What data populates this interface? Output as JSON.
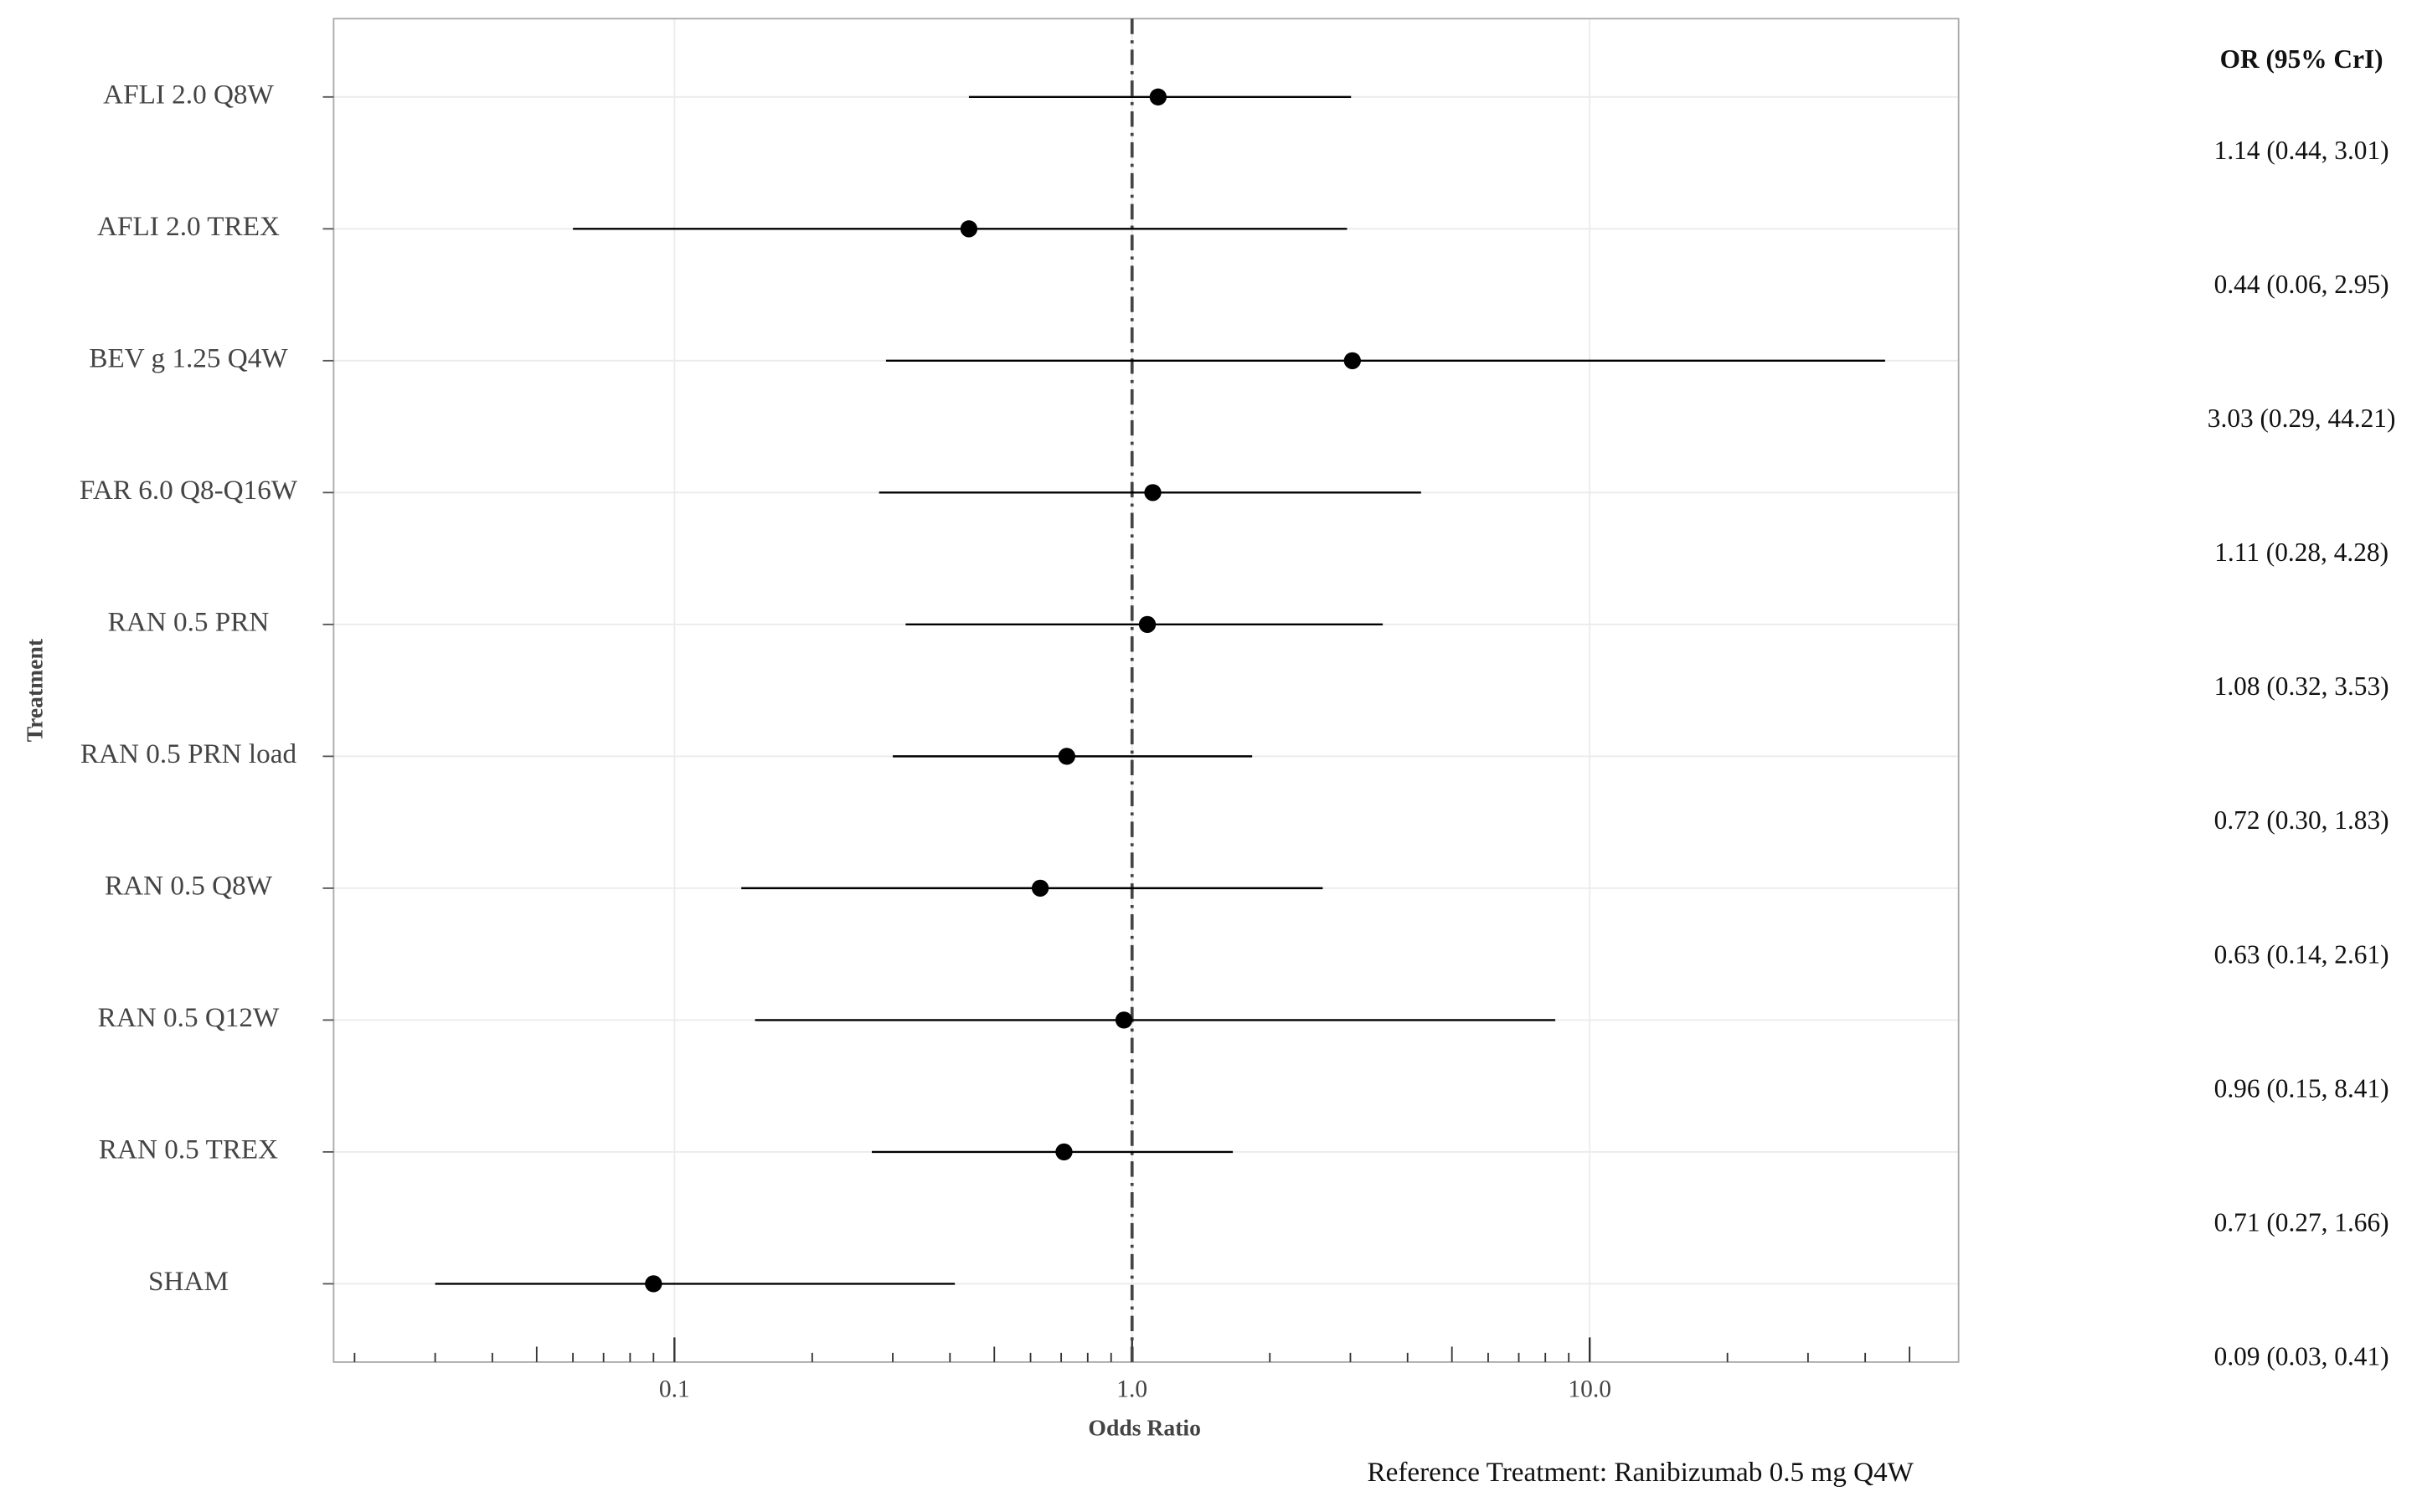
{
  "chart_data": {
    "type": "forest",
    "x_label": "Odds Ratio",
    "y_label": "Treatment",
    "table_header": "OR (95% CrI)",
    "footnote": "Reference Treatment: Ranibizumab 0.5 mg Q4W",
    "categories": [
      "AFLI 2.0 Q8W",
      "AFLI 2.0 TREX",
      "BEV g 1.25 Q4W",
      "FAR 6.0 Q8-Q16W",
      "RAN 0.5 PRN",
      "RAN 0.5 PRN load",
      "RAN 0.5 Q8W",
      "RAN 0.5 Q12W",
      "RAN 0.5 TREX",
      "SHAM"
    ],
    "values": [
      1.14,
      0.44,
      3.03,
      1.11,
      1.08,
      0.72,
      0.63,
      0.96,
      0.71,
      0.09
    ],
    "lower": [
      0.44,
      0.06,
      0.29,
      0.28,
      0.32,
      0.3,
      0.14,
      0.15,
      0.27,
      0.03
    ],
    "upper": [
      3.01,
      2.95,
      44.21,
      4.28,
      3.53,
      1.83,
      2.61,
      8.41,
      1.66,
      0.41
    ],
    "value_labels": [
      "1.14 (0.44, 3.01)",
      "0.44 (0.06, 2.95)",
      "3.03 (0.29, 44.21)",
      "1.11 (0.28, 4.28)",
      "1.08 (0.32, 3.53)",
      "0.72 (0.30, 1.83)",
      "0.63 (0.14, 2.61)",
      "0.96 (0.15, 8.41)",
      "0.71 (0.27, 1.66)",
      "0.09 (0.03, 0.41)"
    ],
    "color": "#000000",
    "xscale": "log",
    "xlim": [
      0.018,
      64
    ],
    "xticks": [
      0.1,
      {
        "value": 1,
        "label": "1.0"
      },
      {
        "value": 10,
        "label": "10.0"
      }
    ],
    "xminorticks": [
      0.02,
      0.03,
      0.04,
      0.05,
      0.06,
      0.07,
      0.08,
      0.09,
      0.2,
      0.3,
      0.4,
      0.5,
      0.6,
      0.7,
      0.8,
      0.9,
      2,
      3,
      4,
      5,
      6,
      7,
      8,
      9,
      20,
      30,
      40,
      50
    ],
    "reference_line": 1,
    "grid": true
  }
}
